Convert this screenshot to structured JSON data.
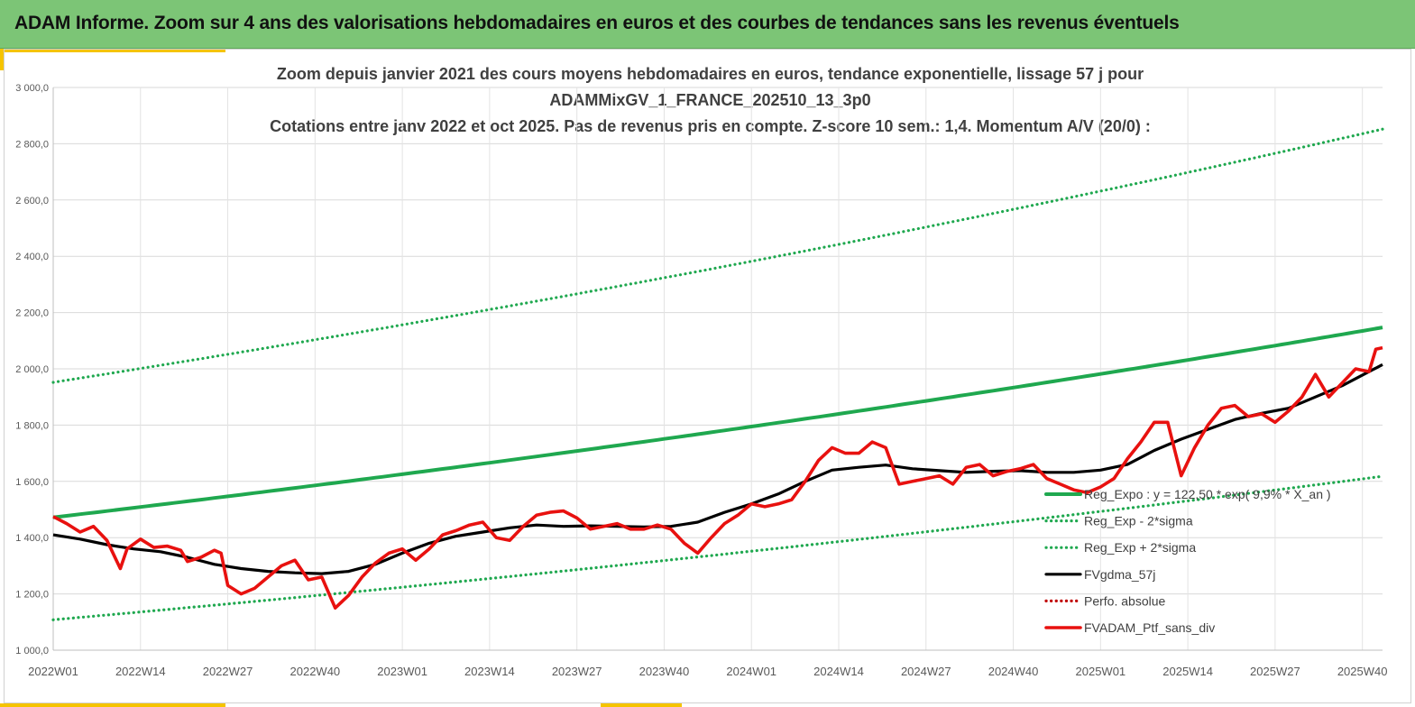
{
  "header": {
    "title": "ADAM Informe. Zoom sur 4 ans des valorisations hebdomadaires en euros et des courbes de tendances sans les revenus éventuels"
  },
  "colors": {
    "banner": "#7cc576",
    "accent": "#f5c400",
    "trend": "#1fa84f",
    "price": "#e8110f",
    "mavg": "#000000",
    "perfo": "#c00000"
  },
  "chart_data": {
    "type": "line",
    "title_lines": [
      "Zoom depuis janvier 2021 des cours moyens hebdomadaires  en euros, tendance exponentielle, lissage 57 j pour",
      "ADAMMixGV_1_FRANCE_202510_13_3p0",
      "Cotations  entre janv 2022 et oct 2025. Pas de revenus pris en compte. Z-score 10 sem.: 1,4. Momentum A/V (20/0) :"
    ],
    "ylim": [
      1000,
      3000
    ],
    "yticks": [
      1000,
      1200,
      1400,
      1600,
      1800,
      2000,
      2200,
      2400,
      2600,
      2800,
      3000
    ],
    "ytick_labels": [
      "1 000,0",
      "1 200,0",
      "1 400,0",
      "1 600,0",
      "1 800,0",
      "2 000,0",
      "2 200,0",
      "2 400,0",
      "2 600,0",
      "2 800,0",
      "3 000,0"
    ],
    "n_weeks": 199,
    "xtick_index": [
      0,
      13,
      26,
      39,
      52,
      65,
      78,
      91,
      104,
      117,
      130,
      143,
      156,
      169,
      182,
      195
    ],
    "xtick_labels": [
      "2022W01",
      "2022W14",
      "2022W27",
      "2022W40",
      "2023W01",
      "2023W14",
      "2023W27",
      "2023W40",
      "2024W01",
      "2024W14",
      "2024W27",
      "2024W40",
      "2025W01",
      "2025W14",
      "2025W27",
      "2025W40"
    ],
    "series": [
      {
        "name": "Reg_Expo : y = 122,50 * exp( 9,9% * X_an )",
        "style": "solid-green",
        "start": 1472,
        "end": 2147
      },
      {
        "name": "Reg_Exp - 2*sigma",
        "style": "dotted-green",
        "start": 1108,
        "end": 1618
      },
      {
        "name": "Reg_Exp + 2*sigma",
        "style": "dotted-green",
        "start": 1952,
        "end": 2852
      },
      {
        "name": "FVgdma_57j",
        "style": "solid-black",
        "points": [
          [
            0,
            1410
          ],
          [
            4,
            1395
          ],
          [
            8,
            1375
          ],
          [
            12,
            1360
          ],
          [
            16,
            1350
          ],
          [
            20,
            1330
          ],
          [
            24,
            1305
          ],
          [
            28,
            1290
          ],
          [
            32,
            1280
          ],
          [
            36,
            1275
          ],
          [
            40,
            1272
          ],
          [
            44,
            1280
          ],
          [
            48,
            1305
          ],
          [
            52,
            1345
          ],
          [
            56,
            1380
          ],
          [
            60,
            1405
          ],
          [
            64,
            1420
          ],
          [
            68,
            1435
          ],
          [
            72,
            1445
          ],
          [
            76,
            1440
          ],
          [
            80,
            1442
          ],
          [
            84,
            1440
          ],
          [
            88,
            1438
          ],
          [
            92,
            1440
          ],
          [
            96,
            1455
          ],
          [
            100,
            1490
          ],
          [
            104,
            1520
          ],
          [
            108,
            1555
          ],
          [
            112,
            1600
          ],
          [
            116,
            1640
          ],
          [
            120,
            1650
          ],
          [
            124,
            1658
          ],
          [
            128,
            1645
          ],
          [
            132,
            1638
          ],
          [
            136,
            1632
          ],
          [
            140,
            1636
          ],
          [
            144,
            1638
          ],
          [
            148,
            1632
          ],
          [
            152,
            1632
          ],
          [
            156,
            1640
          ],
          [
            160,
            1660
          ],
          [
            164,
            1710
          ],
          [
            168,
            1750
          ],
          [
            172,
            1785
          ],
          [
            176,
            1820
          ],
          [
            180,
            1842
          ],
          [
            184,
            1860
          ],
          [
            188,
            1900
          ],
          [
            192,
            1940
          ],
          [
            196,
            1990
          ],
          [
            198,
            2015
          ]
        ]
      },
      {
        "name": "Perfo. absolue",
        "style": "dotted-red"
      },
      {
        "name": "FVADAM_Ptf_sans_div",
        "style": "solid-red",
        "points": [
          [
            0,
            1475
          ],
          [
            2,
            1450
          ],
          [
            4,
            1420
          ],
          [
            6,
            1440
          ],
          [
            8,
            1390
          ],
          [
            10,
            1290
          ],
          [
            11,
            1360
          ],
          [
            13,
            1395
          ],
          [
            15,
            1365
          ],
          [
            17,
            1370
          ],
          [
            19,
            1355
          ],
          [
            20,
            1315
          ],
          [
            22,
            1330
          ],
          [
            24,
            1355
          ],
          [
            25,
            1345
          ],
          [
            26,
            1230
          ],
          [
            28,
            1200
          ],
          [
            30,
            1220
          ],
          [
            32,
            1260
          ],
          [
            34,
            1300
          ],
          [
            36,
            1320
          ],
          [
            38,
            1250
          ],
          [
            40,
            1260
          ],
          [
            42,
            1150
          ],
          [
            44,
            1195
          ],
          [
            46,
            1260
          ],
          [
            48,
            1310
          ],
          [
            50,
            1345
          ],
          [
            52,
            1360
          ],
          [
            54,
            1320
          ],
          [
            56,
            1360
          ],
          [
            58,
            1410
          ],
          [
            60,
            1425
          ],
          [
            62,
            1445
          ],
          [
            64,
            1455
          ],
          [
            66,
            1400
          ],
          [
            68,
            1390
          ],
          [
            70,
            1440
          ],
          [
            72,
            1480
          ],
          [
            74,
            1490
          ],
          [
            76,
            1495
          ],
          [
            78,
            1470
          ],
          [
            80,
            1430
          ],
          [
            82,
            1440
          ],
          [
            84,
            1450
          ],
          [
            86,
            1430
          ],
          [
            88,
            1430
          ],
          [
            90,
            1445
          ],
          [
            92,
            1430
          ],
          [
            94,
            1380
          ],
          [
            96,
            1345
          ],
          [
            98,
            1400
          ],
          [
            100,
            1450
          ],
          [
            102,
            1480
          ],
          [
            104,
            1520
          ],
          [
            106,
            1510
          ],
          [
            108,
            1520
          ],
          [
            110,
            1535
          ],
          [
            112,
            1600
          ],
          [
            114,
            1675
          ],
          [
            116,
            1720
          ],
          [
            118,
            1700
          ],
          [
            120,
            1700
          ],
          [
            122,
            1740
          ],
          [
            124,
            1720
          ],
          [
            126,
            1590
          ],
          [
            128,
            1600
          ],
          [
            130,
            1610
          ],
          [
            132,
            1620
          ],
          [
            134,
            1590
          ],
          [
            136,
            1650
          ],
          [
            138,
            1660
          ],
          [
            140,
            1620
          ],
          [
            142,
            1635
          ],
          [
            144,
            1645
          ],
          [
            146,
            1660
          ],
          [
            148,
            1610
          ],
          [
            150,
            1590
          ],
          [
            152,
            1570
          ],
          [
            154,
            1560
          ],
          [
            156,
            1580
          ],
          [
            158,
            1610
          ],
          [
            160,
            1680
          ],
          [
            162,
            1740
          ],
          [
            164,
            1810
          ],
          [
            166,
            1810
          ],
          [
            168,
            1620
          ],
          [
            170,
            1720
          ],
          [
            172,
            1800
          ],
          [
            174,
            1860
          ],
          [
            176,
            1870
          ],
          [
            178,
            1830
          ],
          [
            180,
            1840
          ],
          [
            182,
            1810
          ],
          [
            184,
            1850
          ],
          [
            186,
            1900
          ],
          [
            188,
            1980
          ],
          [
            190,
            1900
          ],
          [
            192,
            1950
          ],
          [
            194,
            2000
          ],
          [
            196,
            1990
          ],
          [
            197,
            2070
          ],
          [
            198,
            2075
          ]
        ]
      }
    ],
    "legend_position": "bottom-right"
  }
}
